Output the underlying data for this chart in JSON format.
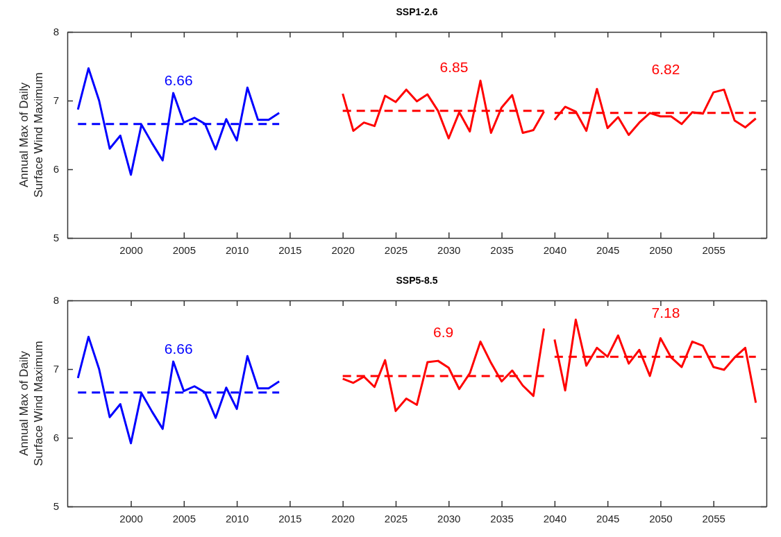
{
  "chart_data": [
    {
      "type": "line",
      "title": "SSP1-2.6",
      "ylabel": "Annual Max of Daily\nSurface Wind Maximum",
      "xlim": [
        1994,
        2060
      ],
      "xticks": [
        2000,
        2005,
        2010,
        2015,
        2020,
        2025,
        2030,
        2035,
        2040,
        2045,
        2050,
        2055
      ],
      "ylim": [
        5,
        8
      ],
      "yticks": [
        5,
        6,
        7,
        8
      ],
      "grid": false,
      "marker": "none",
      "series": [
        {
          "color": "#0000ff",
          "x": [
            1995,
            1996,
            1997,
            1998,
            1999,
            2000,
            2001,
            2002,
            2003,
            2004,
            2005,
            2006,
            2007,
            2008,
            2009,
            2010,
            2011,
            2012,
            2013,
            2014
          ],
          "values": [
            6.87,
            7.47,
            7.0,
            6.3,
            6.49,
            5.92,
            6.65,
            6.38,
            6.13,
            7.11,
            6.68,
            6.75,
            6.66,
            6.29,
            6.73,
            6.42,
            7.19,
            6.72,
            6.72,
            6.82
          ]
        },
        {
          "color": "#ff0000",
          "x": [
            2020,
            2021,
            2022,
            2023,
            2024,
            2025,
            2026,
            2027,
            2028,
            2029,
            2030,
            2031,
            2032,
            2033,
            2034,
            2035,
            2036,
            2037,
            2038,
            2039
          ],
          "values": [
            7.1,
            6.56,
            6.68,
            6.63,
            7.07,
            6.98,
            7.16,
            6.99,
            7.09,
            6.85,
            6.45,
            6.83,
            6.55,
            7.29,
            6.53,
            6.9,
            7.08,
            6.53,
            6.57,
            6.84
          ]
        },
        {
          "color": "#ff0000",
          "x": [
            2040,
            2041,
            2042,
            2043,
            2044,
            2045,
            2046,
            2047,
            2048,
            2049,
            2050,
            2051,
            2052,
            2053,
            2054,
            2055,
            2056,
            2057,
            2058,
            2059
          ],
          "values": [
            6.72,
            6.91,
            6.84,
            6.56,
            7.17,
            6.6,
            6.76,
            6.5,
            6.68,
            6.82,
            6.77,
            6.77,
            6.66,
            6.83,
            6.81,
            7.12,
            7.16,
            6.71,
            6.61,
            6.74
          ]
        },
        {
          "color": "#0000ff",
          "line_style": "dashed",
          "x": [
            1995,
            2014
          ],
          "values": [
            6.66,
            6.66
          ]
        },
        {
          "color": "#ff0000",
          "line_style": "dashed",
          "x": [
            2020,
            2039
          ],
          "values": [
            6.85,
            6.85
          ]
        },
        {
          "color": "#ff0000",
          "line_style": "dashed",
          "x": [
            2040,
            2059
          ],
          "values": [
            6.82,
            6.82
          ]
        }
      ],
      "annotations": [
        {
          "text": "6.66",
          "x": 2004.5,
          "y": 6.66
        },
        {
          "text": "6.85",
          "x": 2030.5,
          "y": 6.85
        },
        {
          "text": "6.82",
          "x": 2050.5,
          "y": 6.82
        }
      ]
    },
    {
      "type": "line",
      "title": "SSP5-8.5",
      "ylabel": "Annual Max of Daily\nSurface Wind Maximum",
      "xlim": [
        1994,
        2060
      ],
      "xticks": [
        2000,
        2005,
        2010,
        2015,
        2020,
        2025,
        2030,
        2035,
        2040,
        2045,
        2050,
        2055
      ],
      "ylim": [
        5,
        8
      ],
      "yticks": [
        5,
        6,
        7,
        8
      ],
      "grid": false,
      "marker": "none",
      "series": [
        {
          "color": "#0000ff",
          "x": [
            1995,
            1996,
            1997,
            1998,
            1999,
            2000,
            2001,
            2002,
            2003,
            2004,
            2005,
            2006,
            2007,
            2008,
            2009,
            2010,
            2011,
            2012,
            2013,
            2014
          ],
          "values": [
            6.87,
            7.47,
            7.0,
            6.3,
            6.49,
            5.92,
            6.65,
            6.38,
            6.13,
            7.11,
            6.68,
            6.75,
            6.66,
            6.29,
            6.73,
            6.42,
            7.19,
            6.72,
            6.72,
            6.82
          ]
        },
        {
          "color": "#ff0000",
          "x": [
            2020,
            2021,
            2022,
            2023,
            2024,
            2025,
            2026,
            2027,
            2028,
            2029,
            2030,
            2031,
            2032,
            2033,
            2034,
            2035,
            2036,
            2037,
            2038,
            2039
          ],
          "values": [
            6.86,
            6.8,
            6.89,
            6.74,
            7.13,
            6.39,
            6.57,
            6.48,
            7.1,
            7.12,
            7.02,
            6.71,
            6.94,
            7.4,
            7.09,
            6.82,
            6.98,
            6.76,
            6.61,
            7.59
          ]
        },
        {
          "color": "#ff0000",
          "x": [
            2040,
            2041,
            2042,
            2043,
            2044,
            2045,
            2046,
            2047,
            2048,
            2049,
            2050,
            2051,
            2052,
            2053,
            2054,
            2055,
            2056,
            2057,
            2058,
            2059
          ],
          "values": [
            7.43,
            6.69,
            7.72,
            7.05,
            7.31,
            7.18,
            7.49,
            7.08,
            7.28,
            6.9,
            7.45,
            7.17,
            7.03,
            7.4,
            7.34,
            7.03,
            6.99,
            7.17,
            7.31,
            6.51
          ]
        },
        {
          "color": "#0000ff",
          "line_style": "dashed",
          "x": [
            1995,
            2014
          ],
          "values": [
            6.66,
            6.66
          ]
        },
        {
          "color": "#ff0000",
          "line_style": "dashed",
          "x": [
            2020,
            2039
          ],
          "values": [
            6.9,
            6.9
          ]
        },
        {
          "color": "#ff0000",
          "line_style": "dashed",
          "x": [
            2040,
            2059
          ],
          "values": [
            7.18,
            7.18
          ]
        }
      ],
      "annotations": [
        {
          "text": "6.66",
          "x": 2004.5,
          "y": 6.66
        },
        {
          "text": "6.9",
          "x": 2029.5,
          "y": 6.9
        },
        {
          "text": "7.18",
          "x": 2050.5,
          "y": 7.18
        }
      ]
    }
  ]
}
